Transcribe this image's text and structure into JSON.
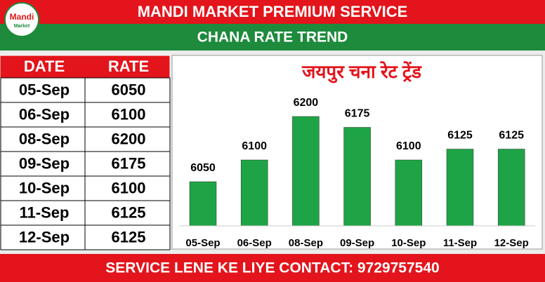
{
  "logo": {
    "line1": "Mandi",
    "line2": "Market"
  },
  "header": {
    "title": "MANDI MARKET PREMIUM SERVICE",
    "subtitle": "CHANA RATE TREND"
  },
  "table": {
    "columns": [
      "DATE",
      "RATE"
    ],
    "rows": [
      [
        "05-Sep",
        "6050"
      ],
      [
        "06-Sep",
        "6100"
      ],
      [
        "08-Sep",
        "6200"
      ],
      [
        "09-Sep",
        "6175"
      ],
      [
        "10-Sep",
        "6100"
      ],
      [
        "11-Sep",
        "6125"
      ],
      [
        "12-Sep",
        "6125"
      ]
    ]
  },
  "chart_data": {
    "type": "bar",
    "title": "जयपुर चना रेट ट्रेंड",
    "categories": [
      "05-Sep",
      "06-Sep",
      "08-Sep",
      "09-Sep",
      "10-Sep",
      "11-Sep",
      "12-Sep"
    ],
    "values": [
      6050,
      6100,
      6200,
      6175,
      6100,
      6125,
      6125
    ],
    "color": "#1ea446"
  },
  "footer": {
    "text": "SERVICE LENE KE LIYE CONTACT: 9729757540"
  }
}
